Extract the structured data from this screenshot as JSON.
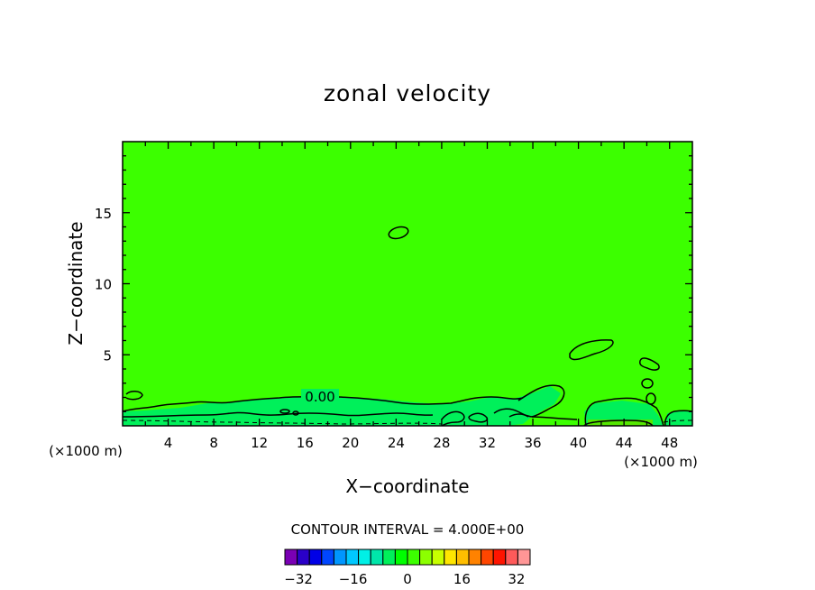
{
  "chart_data": {
    "type": "contour",
    "title": "zonal velocity",
    "xlabel": "X−coordinate",
    "ylabel": "Z−coordinate",
    "x_unit": "(×1000 m)",
    "x_unit_right": "(×1000 m)",
    "xlim": [
      0,
      50
    ],
    "ylim": [
      0,
      20
    ],
    "x_ticks": [
      "4",
      "8",
      "12",
      "16",
      "20",
      "24",
      "28",
      "32",
      "36",
      "40",
      "44",
      "48"
    ],
    "y_ticks": [
      "5",
      "10",
      "15"
    ],
    "contour_label": "0.00",
    "contour_interval_text": "CONTOUR INTERVAL = 4.000E+00",
    "colorbar": {
      "min": -36,
      "max": 36,
      "step": 4,
      "tick_labels": [
        "−32",
        "−16",
        "0",
        "16",
        "32"
      ],
      "tick_values": [
        -32,
        -16,
        0,
        16,
        32
      ],
      "colors": [
        "#7a00b4",
        "#2a00c8",
        "#0000e6",
        "#0046ff",
        "#0096ff",
        "#00c8ff",
        "#00f0e6",
        "#00e6aa",
        "#00f05a",
        "#00ff00",
        "#3cff00",
        "#8cff00",
        "#c8ff00",
        "#ffe600",
        "#ffbe00",
        "#ff8200",
        "#ff4600",
        "#ff1400",
        "#ff5a5a",
        "#ff9696"
      ]
    },
    "field_color": "#3cff00",
    "near_surface_color": "#00f05a",
    "grid": false
  }
}
